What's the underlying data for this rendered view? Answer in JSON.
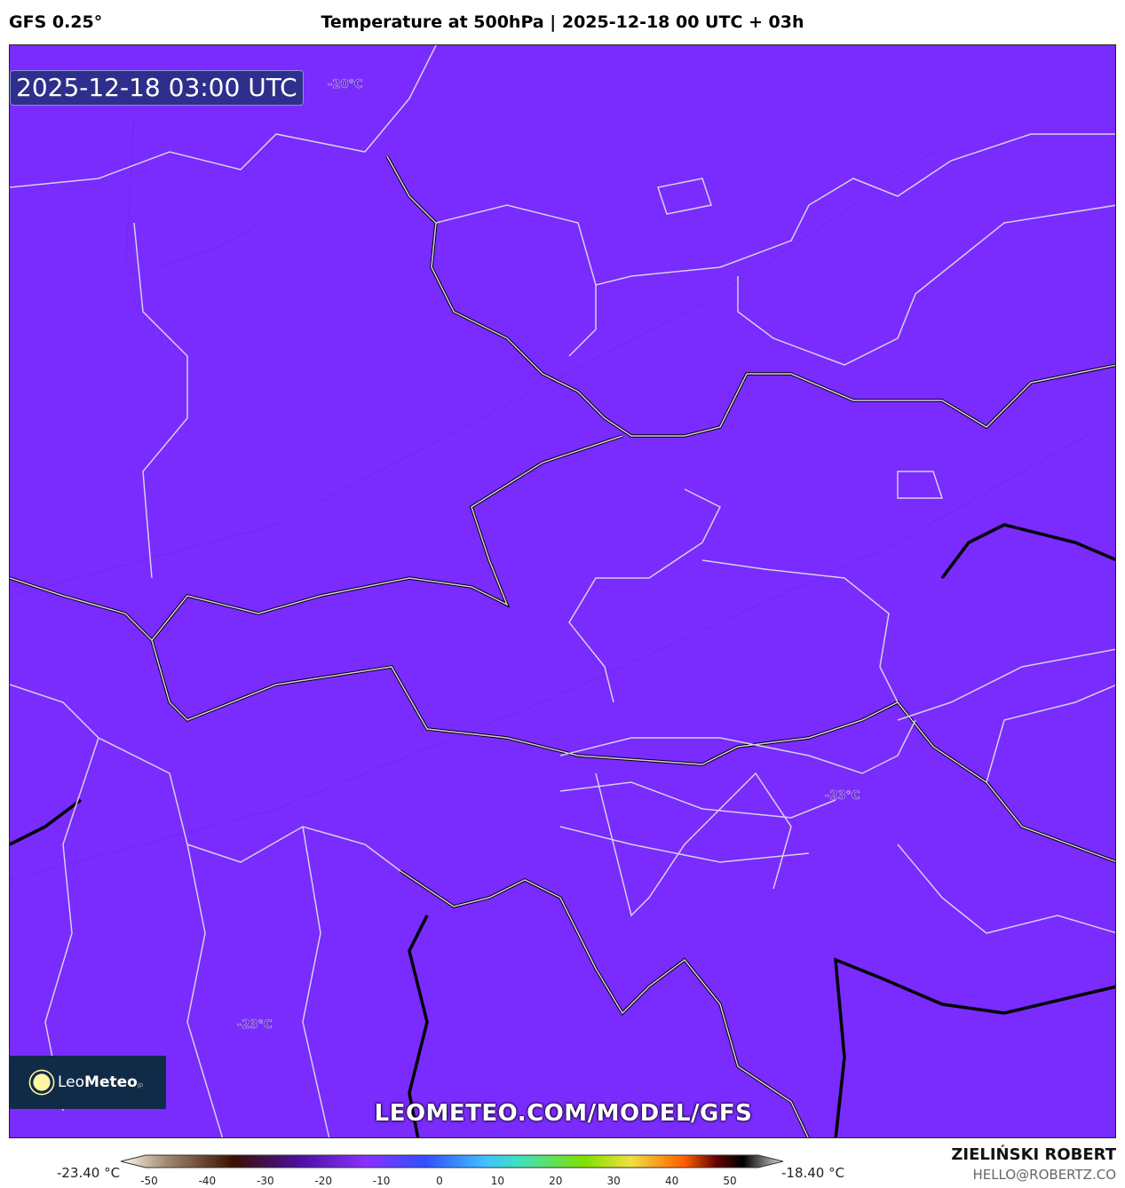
{
  "header": {
    "model": "GFS 0.25°",
    "title": "Temperature at 500hPa | 2025-12-18 00 UTC + 03h"
  },
  "map": {
    "valid_time": "2025-12-18 03:00 UTC",
    "fill_color": "#7a2bfd",
    "isotherm_labels": [
      "-20°C",
      "-23°C",
      "-23°C"
    ],
    "watermark": "LEOMETEO.COM/MODEL/GFS",
    "logo": {
      "name": "LeoMeteo",
      "suffix": "jp",
      "part1": "Leo",
      "part2": "Meteo"
    }
  },
  "colorbar": {
    "min_label": "-23.40 °C",
    "max_label": "-18.40 °C",
    "ticks": [
      "-50",
      "-40",
      "-30",
      "-20",
      "-10",
      "0",
      "10",
      "20",
      "30",
      "40",
      "50"
    ]
  },
  "credits": {
    "author": "ZIELIŃSKI ROBERT",
    "email": "HELLO@ROBERTZ.CO"
  }
}
